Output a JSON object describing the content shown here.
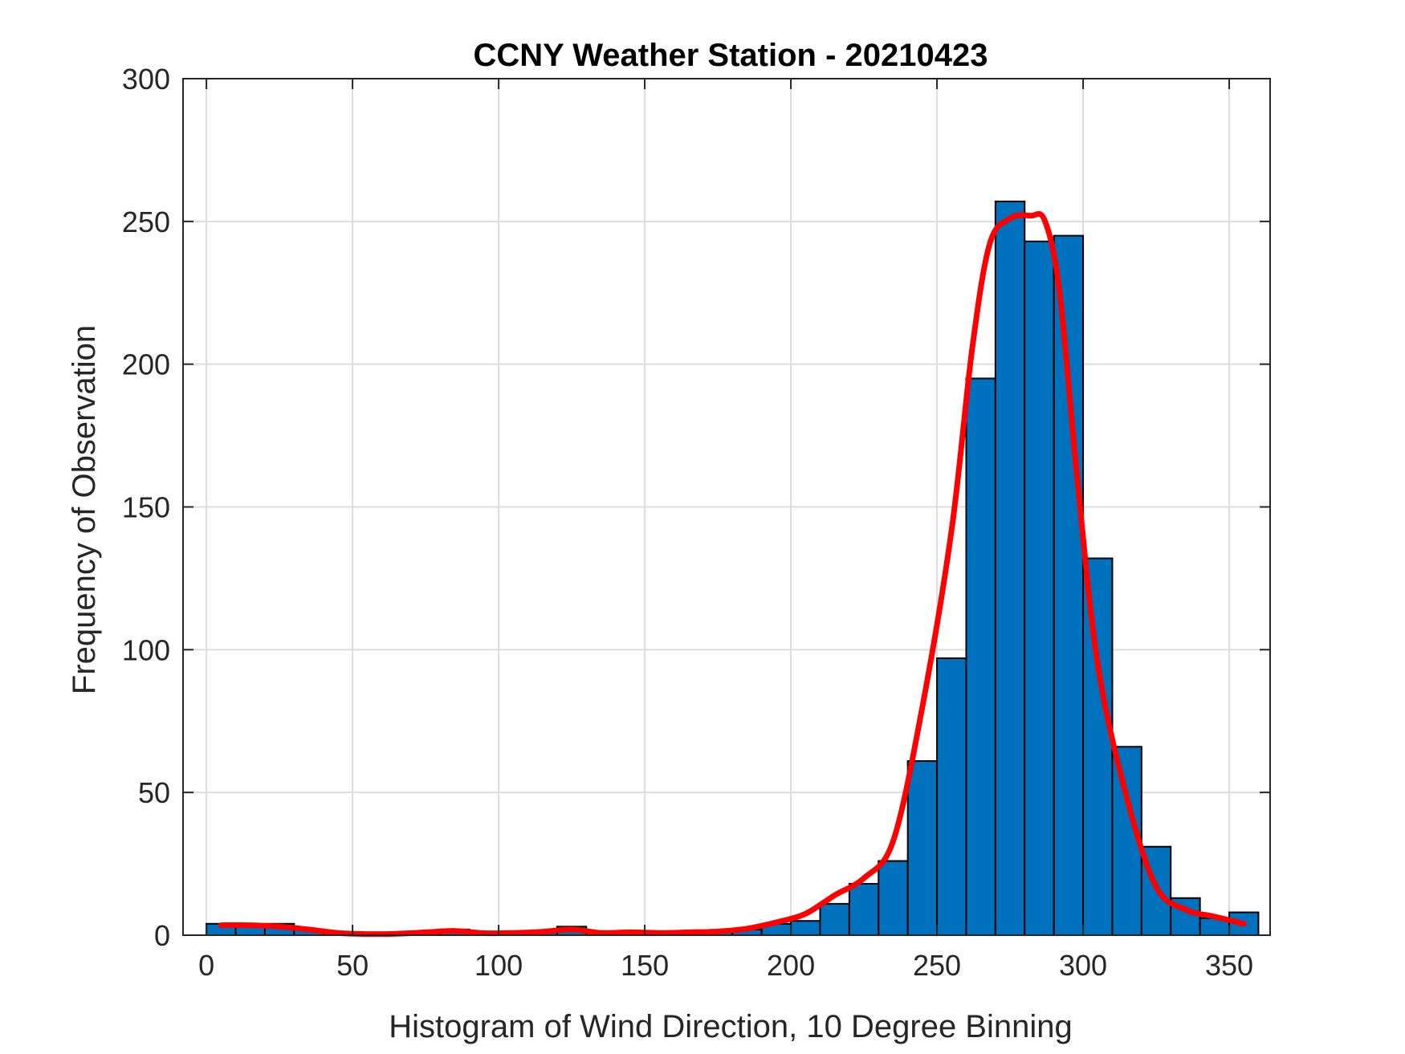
{
  "chart_data": {
    "type": "bar",
    "title": "CCNY Weather Station - 20210423",
    "xlabel": "Histogram of Wind Direction, 10 Degree Binning",
    "ylabel": "Frequency of Observation",
    "xlim": [
      -8,
      364
    ],
    "ylim": [
      0,
      300
    ],
    "xticks": [
      0,
      50,
      100,
      150,
      200,
      250,
      300,
      350
    ],
    "yticks": [
      0,
      50,
      100,
      150,
      200,
      250,
      300
    ],
    "grid": true,
    "bar_color": "#0072BD",
    "bar_edge_color": "#000000",
    "curve_color": "#FF0000",
    "bin_width": 10,
    "bins": [
      {
        "left": 0,
        "value": 4
      },
      {
        "left": 10,
        "value": 3
      },
      {
        "left": 20,
        "value": 4
      },
      {
        "left": 30,
        "value": 2
      },
      {
        "left": 40,
        "value": 1
      },
      {
        "left": 50,
        "value": 0
      },
      {
        "left": 60,
        "value": 0
      },
      {
        "left": 70,
        "value": 1
      },
      {
        "left": 80,
        "value": 2
      },
      {
        "left": 90,
        "value": 0
      },
      {
        "left": 100,
        "value": 1
      },
      {
        "left": 110,
        "value": 1
      },
      {
        "left": 120,
        "value": 3
      },
      {
        "left": 130,
        "value": 1
      },
      {
        "left": 140,
        "value": 1
      },
      {
        "left": 150,
        "value": 1
      },
      {
        "left": 160,
        "value": 1
      },
      {
        "left": 170,
        "value": 1
      },
      {
        "left": 180,
        "value": 2
      },
      {
        "left": 190,
        "value": 4
      },
      {
        "left": 200,
        "value": 5
      },
      {
        "left": 210,
        "value": 11
      },
      {
        "left": 220,
        "value": 18
      },
      {
        "left": 230,
        "value": 26
      },
      {
        "left": 240,
        "value": 61
      },
      {
        "left": 250,
        "value": 97
      },
      {
        "left": 260,
        "value": 195
      },
      {
        "left": 270,
        "value": 257
      },
      {
        "left": 280,
        "value": 243
      },
      {
        "left": 290,
        "value": 245
      },
      {
        "left": 300,
        "value": 132
      },
      {
        "left": 310,
        "value": 66
      },
      {
        "left": 320,
        "value": 31
      },
      {
        "left": 330,
        "value": 13
      },
      {
        "left": 340,
        "value": 6
      },
      {
        "left": 350,
        "value": 8
      }
    ],
    "series": [
      {
        "type": "line",
        "x": [
          5,
          15,
          25,
          35,
          45,
          55,
          65,
          75,
          85,
          95,
          105,
          115,
          125,
          135,
          145,
          155,
          165,
          175,
          185,
          195,
          205,
          215,
          225,
          235,
          245,
          255,
          262,
          268,
          275,
          282,
          287,
          292,
          298,
          305,
          315,
          325,
          335,
          345,
          355
        ],
        "y": [
          3.5,
          3.5,
          3,
          2,
          0.8,
          0.4,
          0.5,
          1,
          1.5,
          0.7,
          0.8,
          1.2,
          2,
          0.8,
          1,
          0.8,
          1,
          1.3,
          2.3,
          4.5,
          7.5,
          14,
          20,
          33,
          80,
          142,
          205,
          242,
          251,
          252,
          250,
          225,
          160,
          95,
          48,
          17,
          9,
          6.5,
          4
        ]
      }
    ]
  }
}
